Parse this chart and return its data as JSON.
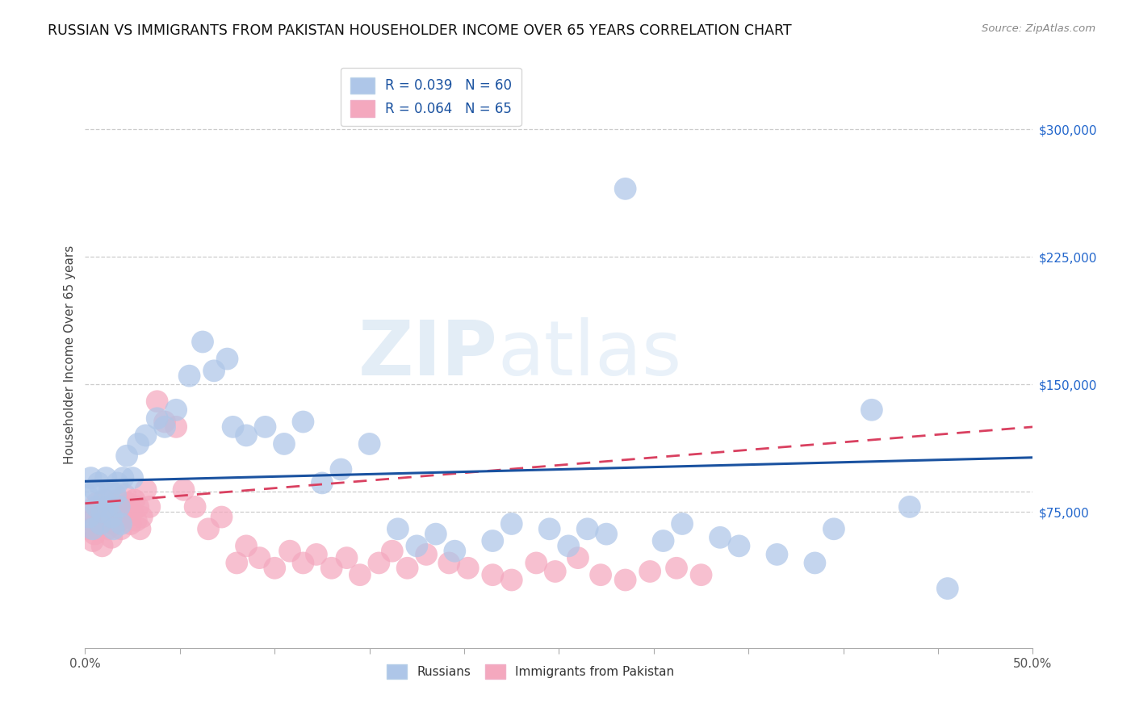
{
  "title": "RUSSIAN VS IMMIGRANTS FROM PAKISTAN HOUSEHOLDER INCOME OVER 65 YEARS CORRELATION CHART",
  "source": "Source: ZipAtlas.com",
  "ylabel": "Householder Income Over 65 years",
  "legend_label1": "R = 0.039   N = 60",
  "legend_label2": "R = 0.064   N = 65",
  "legend_name1": "Russians",
  "legend_name2": "Immigrants from Pakistan",
  "color_russian": "#aec6e8",
  "color_pakistan": "#f4a8be",
  "color_trendline_russian": "#1a52a0",
  "color_trendline_pakistan": "#d94060",
  "ytick_labels": [
    "$75,000",
    "$150,000",
    "$225,000",
    "$300,000"
  ],
  "ytick_values": [
    75000,
    150000,
    225000,
    300000
  ],
  "xlim": [
    0,
    0.5
  ],
  "ylim": [
    -5000,
    340000
  ],
  "trendline_rus": [
    0.0,
    93000,
    0.5,
    107000
  ],
  "trendline_pak": [
    0.0,
    80000,
    0.5,
    125000
  ],
  "russians_x": [
    0.001,
    0.002,
    0.003,
    0.004,
    0.005,
    0.006,
    0.007,
    0.008,
    0.009,
    0.01,
    0.011,
    0.012,
    0.013,
    0.014,
    0.015,
    0.016,
    0.017,
    0.018,
    0.019,
    0.02,
    0.022,
    0.025,
    0.028,
    0.032,
    0.038,
    0.042,
    0.048,
    0.055,
    0.062,
    0.068,
    0.075,
    0.078,
    0.085,
    0.095,
    0.105,
    0.115,
    0.125,
    0.135,
    0.15,
    0.165,
    0.175,
    0.185,
    0.195,
    0.215,
    0.225,
    0.245,
    0.255,
    0.265,
    0.275,
    0.285,
    0.305,
    0.315,
    0.335,
    0.345,
    0.365,
    0.385,
    0.395,
    0.415,
    0.435,
    0.455
  ],
  "russians_y": [
    85000,
    72000,
    95000,
    65000,
    88000,
    78000,
    92000,
    68000,
    75000,
    82000,
    95000,
    78000,
    88000,
    72000,
    65000,
    85000,
    92000,
    78000,
    68000,
    95000,
    108000,
    95000,
    115000,
    120000,
    130000,
    125000,
    135000,
    155000,
    175000,
    158000,
    165000,
    125000,
    120000,
    125000,
    115000,
    128000,
    92000,
    100000,
    115000,
    65000,
    55000,
    62000,
    52000,
    58000,
    68000,
    65000,
    55000,
    65000,
    62000,
    265000,
    58000,
    68000,
    60000,
    55000,
    50000,
    45000,
    65000,
    135000,
    78000,
    30000
  ],
  "pakistan_x": [
    0.001,
    0.002,
    0.003,
    0.004,
    0.005,
    0.006,
    0.007,
    0.008,
    0.009,
    0.01,
    0.011,
    0.012,
    0.013,
    0.014,
    0.015,
    0.016,
    0.017,
    0.018,
    0.019,
    0.02,
    0.021,
    0.022,
    0.023,
    0.024,
    0.025,
    0.026,
    0.027,
    0.028,
    0.029,
    0.03,
    0.032,
    0.034,
    0.038,
    0.042,
    0.048,
    0.052,
    0.058,
    0.065,
    0.072,
    0.08,
    0.085,
    0.092,
    0.1,
    0.108,
    0.115,
    0.122,
    0.13,
    0.138,
    0.145,
    0.155,
    0.162,
    0.17,
    0.18,
    0.192,
    0.202,
    0.215,
    0.225,
    0.238,
    0.248,
    0.26,
    0.272,
    0.285,
    0.298,
    0.312,
    0.325
  ],
  "pakistan_y": [
    75000,
    65000,
    70000,
    58000,
    62000,
    80000,
    72000,
    68000,
    55000,
    75000,
    82000,
    65000,
    72000,
    60000,
    68000,
    75000,
    82000,
    70000,
    65000,
    78000,
    85000,
    72000,
    80000,
    68000,
    75000,
    82000,
    70000,
    78000,
    65000,
    72000,
    88000,
    78000,
    140000,
    128000,
    125000,
    88000,
    78000,
    65000,
    72000,
    45000,
    55000,
    48000,
    42000,
    52000,
    45000,
    50000,
    42000,
    48000,
    38000,
    45000,
    52000,
    42000,
    50000,
    45000,
    42000,
    38000,
    35000,
    45000,
    40000,
    48000,
    38000,
    35000,
    40000,
    42000,
    38000
  ]
}
